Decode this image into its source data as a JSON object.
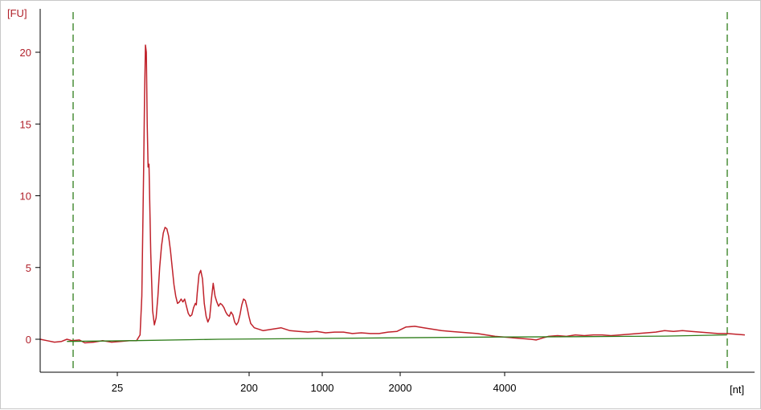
{
  "chart_data": {
    "type": "line",
    "title": "",
    "y_unit": "[FU]",
    "x_unit": "[nt]",
    "yticks": [
      0,
      5,
      10,
      15,
      20
    ],
    "ylim": [
      -2.3,
      22.5
    ],
    "xticks": [
      25,
      200,
      1000,
      2000,
      4000
    ],
    "grid": false,
    "legend": "none",
    "colors": {
      "trace": "#c0222b",
      "baseline": "#2e7d1a",
      "markers": "#2e7d1a",
      "axis": "#000000",
      "ytick_text": "#b0202a"
    },
    "markers": [
      "lower",
      "upper"
    ],
    "series": [
      {
        "values": [
          [
            0.0,
            0.0
          ],
          [
            0.04,
            -0.1
          ],
          [
            0.08,
            -0.2
          ],
          [
            0.12,
            -0.15
          ],
          [
            0.15,
            0.0
          ],
          [
            0.18,
            -0.1
          ],
          [
            0.22,
            -0.05
          ],
          [
            0.25,
            -0.25
          ],
          [
            0.3,
            -0.2
          ],
          [
            0.35,
            -0.1
          ],
          [
            0.4,
            -0.2
          ],
          [
            0.45,
            -0.15
          ],
          [
            0.5,
            -0.1
          ],
          [
            0.54,
            -0.1
          ],
          [
            0.56,
            0.3
          ],
          [
            0.57,
            3.0
          ],
          [
            0.58,
            12.0
          ],
          [
            0.585,
            17.0
          ],
          [
            0.59,
            20.5
          ],
          [
            0.595,
            20.0
          ],
          [
            0.6,
            15.0
          ],
          [
            0.605,
            12.0
          ],
          [
            0.61,
            12.2
          ],
          [
            0.62,
            6.0
          ],
          [
            0.63,
            2.0
          ],
          [
            0.64,
            1.0
          ],
          [
            0.65,
            1.5
          ],
          [
            0.66,
            3.0
          ],
          [
            0.67,
            5.0
          ],
          [
            0.68,
            6.5
          ],
          [
            0.69,
            7.4
          ],
          [
            0.7,
            7.8
          ],
          [
            0.71,
            7.7
          ],
          [
            0.72,
            7.2
          ],
          [
            0.73,
            6.2
          ],
          [
            0.74,
            5.0
          ],
          [
            0.75,
            3.8
          ],
          [
            0.76,
            3.0
          ],
          [
            0.77,
            2.5
          ],
          [
            0.78,
            2.6
          ],
          [
            0.79,
            2.8
          ],
          [
            0.8,
            2.6
          ],
          [
            0.81,
            2.8
          ],
          [
            0.82,
            2.3
          ],
          [
            0.83,
            1.8
          ],
          [
            0.84,
            1.6
          ],
          [
            0.85,
            1.7
          ],
          [
            0.86,
            2.2
          ],
          [
            0.87,
            2.5
          ],
          [
            0.875,
            2.4
          ],
          [
            0.88,
            3.2
          ],
          [
            0.89,
            4.5
          ],
          [
            0.9,
            4.8
          ],
          [
            0.91,
            4.2
          ],
          [
            0.92,
            2.5
          ],
          [
            0.93,
            1.6
          ],
          [
            0.94,
            1.2
          ],
          [
            0.95,
            1.5
          ],
          [
            0.96,
            2.8
          ],
          [
            0.97,
            3.9
          ],
          [
            0.98,
            3.0
          ],
          [
            0.99,
            2.6
          ],
          [
            1.0,
            2.3
          ],
          [
            1.01,
            2.5
          ],
          [
            1.02,
            2.4
          ],
          [
            1.03,
            2.2
          ],
          [
            1.04,
            1.9
          ],
          [
            1.05,
            1.7
          ],
          [
            1.06,
            1.6
          ],
          [
            1.07,
            1.9
          ],
          [
            1.08,
            1.7
          ],
          [
            1.09,
            1.2
          ],
          [
            1.1,
            1.0
          ],
          [
            1.11,
            1.2
          ],
          [
            1.12,
            1.7
          ],
          [
            1.13,
            2.4
          ],
          [
            1.14,
            2.8
          ],
          [
            1.15,
            2.7
          ],
          [
            1.16,
            2.2
          ],
          [
            1.17,
            1.6
          ],
          [
            1.18,
            1.1
          ],
          [
            1.2,
            0.8
          ],
          [
            1.25,
            0.6
          ],
          [
            1.3,
            0.7
          ],
          [
            1.35,
            0.8
          ],
          [
            1.4,
            0.6
          ],
          [
            1.45,
            0.55
          ],
          [
            1.5,
            0.5
          ],
          [
            1.55,
            0.55
          ],
          [
            1.6,
            0.45
          ],
          [
            1.65,
            0.5
          ],
          [
            1.7,
            0.5
          ],
          [
            1.75,
            0.4
          ],
          [
            1.8,
            0.45
          ],
          [
            1.85,
            0.4
          ],
          [
            1.9,
            0.4
          ],
          [
            1.95,
            0.5
          ],
          [
            2.0,
            0.55
          ],
          [
            2.05,
            0.85
          ],
          [
            2.1,
            0.9
          ],
          [
            2.15,
            0.8
          ],
          [
            2.2,
            0.7
          ],
          [
            2.25,
            0.6
          ],
          [
            2.3,
            0.55
          ],
          [
            2.35,
            0.5
          ],
          [
            2.4,
            0.45
          ],
          [
            2.45,
            0.4
          ],
          [
            2.5,
            0.3
          ],
          [
            2.55,
            0.2
          ],
          [
            2.6,
            0.15
          ],
          [
            2.65,
            0.1
          ],
          [
            2.7,
            0.05
          ],
          [
            2.75,
            0.0
          ],
          [
            2.78,
            -0.05
          ],
          [
            2.82,
            0.1
          ],
          [
            2.85,
            0.2
          ],
          [
            2.9,
            0.25
          ],
          [
            2.95,
            0.2
          ],
          [
            3.0,
            0.3
          ],
          [
            3.05,
            0.25
          ],
          [
            3.1,
            0.3
          ],
          [
            3.15,
            0.3
          ],
          [
            3.2,
            0.25
          ],
          [
            3.25,
            0.3
          ],
          [
            3.3,
            0.35
          ],
          [
            3.35,
            0.4
          ],
          [
            3.4,
            0.45
          ],
          [
            3.45,
            0.5
          ],
          [
            3.5,
            0.6
          ],
          [
            3.55,
            0.55
          ],
          [
            3.6,
            0.6
          ],
          [
            3.65,
            0.55
          ],
          [
            3.7,
            0.5
          ],
          [
            3.75,
            0.45
          ],
          [
            3.8,
            0.4
          ],
          [
            3.85,
            0.4
          ],
          [
            3.9,
            0.35
          ],
          [
            3.95,
            0.3
          ]
        ]
      },
      {
        "role": "baseline",
        "values": [
          [
            0.15,
            -0.15
          ],
          [
            0.5,
            -0.1
          ],
          [
            1.0,
            0.0
          ],
          [
            1.5,
            0.05
          ],
          [
            2.0,
            0.1
          ],
          [
            2.5,
            0.15
          ],
          [
            3.0,
            0.18
          ],
          [
            3.5,
            0.22
          ],
          [
            3.85,
            0.3
          ]
        ]
      }
    ]
  }
}
